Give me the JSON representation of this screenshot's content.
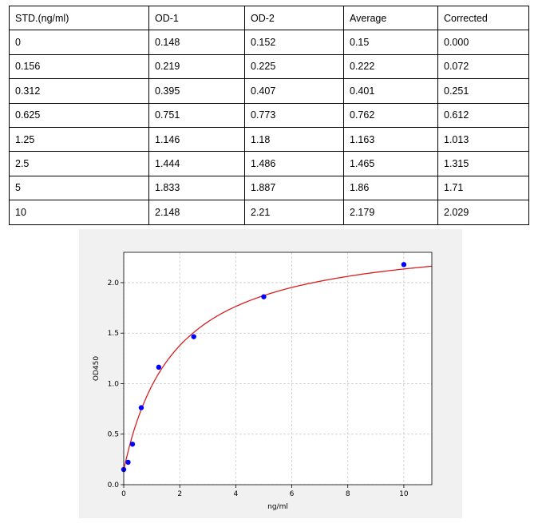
{
  "table": {
    "headers": [
      "STD.(ng/ml)",
      "OD-1",
      "OD-2",
      "Average",
      "Corrected"
    ],
    "rows": [
      [
        "0",
        "0.148",
        "0.152",
        "0.15",
        "0.000"
      ],
      [
        "0.156",
        "0.219",
        "0.225",
        "0.222",
        "0.072"
      ],
      [
        "0.312",
        "0.395",
        "0.407",
        "0.401",
        "0.251"
      ],
      [
        "0.625",
        "0.751",
        "0.773",
        "0.762",
        "0.612"
      ],
      [
        "1.25",
        "1.146",
        "1.18",
        "1.163",
        "1.013"
      ],
      [
        "2.5",
        "1.444",
        "1.486",
        "1.465",
        "1.315"
      ],
      [
        "5",
        "1.833",
        "1.887",
        "1.86",
        "1.71"
      ],
      [
        "10",
        "2.148",
        "2.21",
        "2.179",
        "2.029"
      ]
    ]
  },
  "chart_data": {
    "type": "scatter",
    "xlabel": "ng/ml",
    "ylabel": "OD450",
    "xlim": [
      0,
      11
    ],
    "ylim": [
      0,
      2.3
    ],
    "xticks": [
      0,
      2,
      4,
      6,
      8,
      10
    ],
    "yticks": [
      0.0,
      0.5,
      1.0,
      1.5,
      2.0
    ],
    "xtick_labels": [
      "0",
      "2",
      "4",
      "6",
      "8",
      "10"
    ],
    "ytick_labels": [
      "0.0",
      "0.5",
      "1.0",
      "1.5",
      "2.0"
    ],
    "grid": true,
    "points": {
      "x": [
        0,
        0.156,
        0.312,
        0.625,
        1.25,
        2.5,
        5,
        10
      ],
      "y": [
        0.15,
        0.222,
        0.401,
        0.762,
        1.163,
        1.465,
        1.86,
        2.179
      ],
      "color": "#0000ff"
    },
    "fit_curve": {
      "color": "#d62020",
      "x": [
        0,
        0.25,
        0.5,
        0.75,
        1,
        1.5,
        2,
        2.5,
        3,
        4,
        5,
        6,
        7,
        8,
        9,
        10,
        11
      ],
      "y": [
        0.15,
        0.428,
        0.649,
        0.828,
        0.977,
        1.207,
        1.377,
        1.507,
        1.611,
        1.764,
        1.872,
        1.952,
        2.013,
        2.062,
        2.102,
        2.135,
        2.163
      ]
    }
  }
}
